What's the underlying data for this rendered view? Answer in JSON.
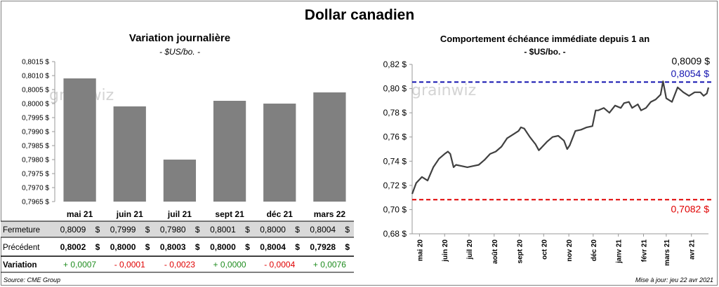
{
  "page": {
    "title": "Dollar canadien",
    "source": "Source: CME Group",
    "updated": "Mise à jour: jeu 22 avr 2021",
    "watermark": "grainwiz"
  },
  "left_panel": {
    "title": "Variation  journalière",
    "unit": "- $US/bo. -",
    "table": {
      "rows": [
        {
          "label": "Fermeture",
          "values": [
            "0,8009",
            "0,7999",
            "0,7980",
            "0,8001",
            "0,8000",
            "0,8004"
          ]
        },
        {
          "label": "Précédent",
          "values": [
            "0,8002",
            "0,8000",
            "0,8003",
            "0,8000",
            "0,8004",
            "0,7928"
          ]
        },
        {
          "label": "Variation",
          "values": [
            "+ 0,0007",
            "- 0,0001",
            "- 0,0023",
            "+ 0,0000",
            "- 0,0004",
            "+ 0,0076"
          ]
        }
      ],
      "currency": "$",
      "positive_color": "#1e8c1e",
      "negative_color": "#e00000"
    }
  },
  "right_panel": {
    "title": "Comportement échéance immédiate depuis 1 an",
    "unit": "- $US/bo. -"
  },
  "chart_data": [
    {
      "type": "bar",
      "categories": [
        "mai 21",
        "juin 21",
        "juil 21",
        "sept 21",
        "déc 21",
        "mars 22"
      ],
      "values": [
        0.8009,
        0.7999,
        0.798,
        0.8001,
        0.8,
        0.8004
      ],
      "ylim": [
        0.7965,
        0.8015
      ],
      "yticks": [
        "0,7965 $",
        "0,7970 $",
        "0,7975 $",
        "0,7980 $",
        "0,7985 $",
        "0,7990 $",
        "0,7995 $",
        "0,8000 $",
        "0,8005 $",
        "0,8010 $",
        "0,8015 $"
      ],
      "bar_color": "#808080"
    },
    {
      "type": "line",
      "ylim": [
        0.68,
        0.82
      ],
      "yticks": [
        "0,68 $",
        "0,70 $",
        "0,72 $",
        "0,74 $",
        "0,76 $",
        "0,78 $",
        "0,80 $",
        "0,82 $"
      ],
      "xticks": [
        "mai 20",
        "juin 20",
        "juil 20",
        "août 20",
        "sept 20",
        "oct 20",
        "nov 20",
        "déc 20",
        "janv 21",
        "févr 21",
        "mars 21",
        "avr 21"
      ],
      "x_start": "2020-04-22",
      "x_end": "2021-04-22",
      "series": [
        {
          "points": [
            [
              "2020-04-22",
              0.713
            ],
            [
              "2020-04-27",
              0.722
            ],
            [
              "2020-05-04",
              0.727
            ],
            [
              "2020-05-11",
              0.724
            ],
            [
              "2020-05-18",
              0.735
            ],
            [
              "2020-05-25",
              0.742
            ],
            [
              "2020-06-01",
              0.746
            ],
            [
              "2020-06-05",
              0.748
            ],
            [
              "2020-06-08",
              0.746
            ],
            [
              "2020-06-12",
              0.735
            ],
            [
              "2020-06-15",
              0.737
            ],
            [
              "2020-06-22",
              0.736
            ],
            [
              "2020-06-29",
              0.735
            ],
            [
              "2020-07-06",
              0.736
            ],
            [
              "2020-07-13",
              0.737
            ],
            [
              "2020-07-20",
              0.741
            ],
            [
              "2020-07-27",
              0.746
            ],
            [
              "2020-08-03",
              0.748
            ],
            [
              "2020-08-10",
              0.752
            ],
            [
              "2020-08-17",
              0.759
            ],
            [
              "2020-08-24",
              0.762
            ],
            [
              "2020-08-31",
              0.765
            ],
            [
              "2020-09-03",
              0.768
            ],
            [
              "2020-09-07",
              0.767
            ],
            [
              "2020-09-14",
              0.76
            ],
            [
              "2020-09-21",
              0.754
            ],
            [
              "2020-09-25",
              0.749
            ],
            [
              "2020-09-28",
              0.751
            ],
            [
              "2020-10-05",
              0.756
            ],
            [
              "2020-10-12",
              0.76
            ],
            [
              "2020-10-19",
              0.761
            ],
            [
              "2020-10-26",
              0.757
            ],
            [
              "2020-10-30",
              0.75
            ],
            [
              "2020-11-02",
              0.753
            ],
            [
              "2020-11-09",
              0.765
            ],
            [
              "2020-11-16",
              0.766
            ],
            [
              "2020-11-23",
              0.768
            ],
            [
              "2020-11-30",
              0.769
            ],
            [
              "2020-12-04",
              0.782
            ],
            [
              "2020-12-07",
              0.782
            ],
            [
              "2020-12-14",
              0.784
            ],
            [
              "2020-12-21",
              0.78
            ],
            [
              "2020-12-28",
              0.786
            ],
            [
              "2021-01-04",
              0.784
            ],
            [
              "2021-01-08",
              0.788
            ],
            [
              "2021-01-14",
              0.789
            ],
            [
              "2021-01-18",
              0.784
            ],
            [
              "2021-01-25",
              0.787
            ],
            [
              "2021-01-29",
              0.782
            ],
            [
              "2021-02-04",
              0.784
            ],
            [
              "2021-02-10",
              0.789
            ],
            [
              "2021-02-16",
              0.791
            ],
            [
              "2021-02-22",
              0.795
            ],
            [
              "2021-02-25",
              0.806
            ],
            [
              "2021-03-01",
              0.792
            ],
            [
              "2021-03-08",
              0.789
            ],
            [
              "2021-03-15",
              0.801
            ],
            [
              "2021-03-22",
              0.797
            ],
            [
              "2021-03-29",
              0.794
            ],
            [
              "2021-04-05",
              0.797
            ],
            [
              "2021-04-12",
              0.797
            ],
            [
              "2021-04-16",
              0.794
            ],
            [
              "2021-04-20",
              0.796
            ],
            [
              "2021-04-22",
              0.8009
            ]
          ]
        }
      ],
      "reference_lines": [
        {
          "value": 0.8054,
          "label": "0,8054 $",
          "color": "#1515b0"
        },
        {
          "value": 0.7082,
          "label": "0,7082 $",
          "color": "#e00000"
        }
      ],
      "last_value_label": "0,8009 $",
      "line_color": "#404040"
    }
  ]
}
